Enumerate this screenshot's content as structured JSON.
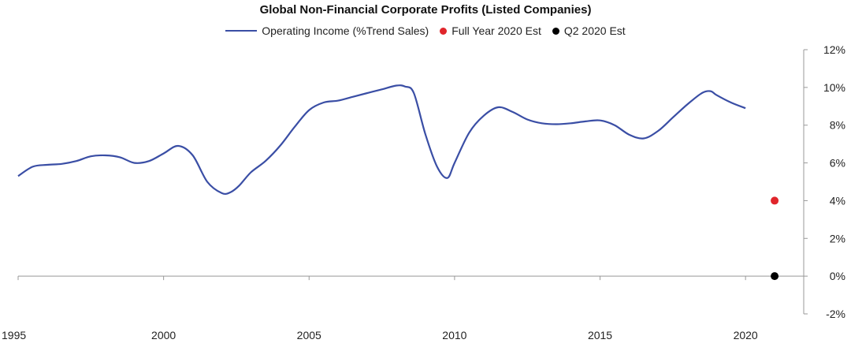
{
  "colors": {
    "line": "#3a4ea5",
    "full_year_dot": "#e0252b",
    "q2_dot": "#000000",
    "axis": "#999999"
  },
  "chart_data": {
    "type": "line",
    "title": "Global Non-Financial Corporate Profits (Listed Companies)",
    "xlabel": "",
    "ylabel": "",
    "xlim": [
      1995,
      2022
    ],
    "ylim": [
      -2,
      12
    ],
    "grid": false,
    "legend_placement": "top-center",
    "x_ticks": [
      1995,
      2000,
      2005,
      2010,
      2015,
      2020
    ],
    "y_ticks": [
      -2,
      0,
      2,
      4,
      6,
      8,
      10,
      12
    ],
    "y_tick_labels": [
      "-2%",
      "0%",
      "2%",
      "4%",
      "6%",
      "8%",
      "10%",
      "12%"
    ],
    "series": [
      {
        "name": "Operating Income (%Trend Sales)",
        "kind": "line",
        "x": [
          1995.0,
          1995.5,
          1996.0,
          1996.5,
          1997.0,
          1997.5,
          1998.0,
          1998.5,
          1999.0,
          1999.5,
          2000.0,
          2000.5,
          2001.0,
          2001.5,
          2002.0,
          2002.3,
          2002.6,
          2003.0,
          2003.5,
          2004.0,
          2004.5,
          2005.0,
          2005.5,
          2006.0,
          2006.5,
          2007.0,
          2007.5,
          2008.0,
          2008.3,
          2008.6,
          2009.0,
          2009.4,
          2009.75,
          2010.0,
          2010.5,
          2011.0,
          2011.5,
          2012.0,
          2012.5,
          2013.0,
          2013.5,
          2014.0,
          2014.5,
          2015.0,
          2015.5,
          2016.0,
          2016.5,
          2017.0,
          2017.5,
          2018.0,
          2018.5,
          2018.8,
          2019.0,
          2019.5,
          2020.0
        ],
        "y": [
          5.3,
          5.8,
          5.9,
          5.95,
          6.1,
          6.35,
          6.4,
          6.3,
          6.0,
          6.1,
          6.5,
          6.9,
          6.4,
          5.0,
          4.4,
          4.45,
          4.8,
          5.5,
          6.1,
          6.9,
          7.9,
          8.8,
          9.2,
          9.3,
          9.5,
          9.7,
          9.9,
          10.1,
          10.05,
          9.7,
          7.5,
          5.8,
          5.2,
          6.0,
          7.6,
          8.5,
          8.95,
          8.7,
          8.3,
          8.1,
          8.05,
          8.1,
          8.2,
          8.25,
          8.0,
          7.5,
          7.3,
          7.7,
          8.4,
          9.1,
          9.7,
          9.8,
          9.6,
          9.2,
          8.9
        ]
      },
      {
        "name": "Full Year 2020 Est",
        "kind": "point",
        "x": [
          2021.0
        ],
        "y": [
          4.0
        ]
      },
      {
        "name": "Q2 2020 Est",
        "kind": "point",
        "x": [
          2021.0
        ],
        "y": [
          0.0
        ]
      }
    ]
  }
}
